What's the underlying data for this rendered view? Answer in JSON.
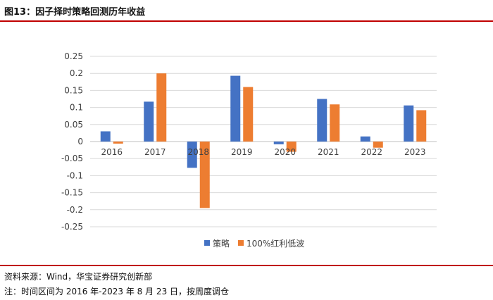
{
  "figure": {
    "title": "图13：因子择时策略回测历年收益",
    "source": "资料来源：Wind，华宝证券研究创新部",
    "note": "注：时间区间为 2016 年-2023 年 8 月 23 日，按周度调仓"
  },
  "colors": {
    "rule": "#c00000",
    "series_1": "#4472c4",
    "series_2": "#ed7d31",
    "grid": "#d9d9d9",
    "axis": "#bfbfbf",
    "text": "#404040"
  },
  "chart_data": {
    "type": "bar",
    "categories": [
      "2016",
      "2017",
      "2018",
      "2019",
      "2020",
      "2021",
      "2022",
      "2023"
    ],
    "series": [
      {
        "name": "策略",
        "values": [
          0.03,
          0.117,
          -0.077,
          0.193,
          -0.008,
          0.125,
          0.015,
          0.106
        ]
      },
      {
        "name": "100%红利低波",
        "values": [
          -0.006,
          0.2,
          -0.195,
          0.16,
          -0.03,
          0.109,
          -0.018,
          0.092
        ]
      }
    ],
    "ylim": [
      -0.25,
      0.25
    ],
    "yticks": [
      0.25,
      0.2,
      0.15,
      0.1,
      0.05,
      0,
      -0.05,
      -0.1,
      -0.15,
      -0.2,
      -0.25
    ],
    "ytick_labels": [
      "0.25",
      "0.2",
      "0.15",
      "0.1",
      "0.05",
      "0",
      "-0.05",
      "-0.1",
      "-0.15",
      "-0.2",
      "-0.25"
    ],
    "grid": true,
    "legend": "bottom-center",
    "xlabel": "",
    "ylabel": ""
  }
}
